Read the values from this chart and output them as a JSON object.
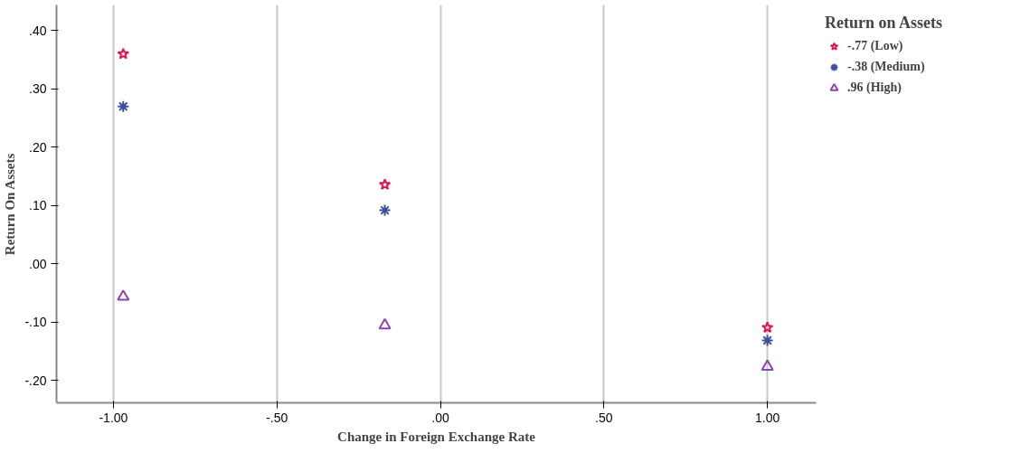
{
  "chart_data": {
    "type": "scatter",
    "xlabel": "Change in Foreign Exchange Rate",
    "ylabel": "Return On Assets",
    "legend_title": "Return on Assets",
    "x": [
      -0.97,
      -0.17,
      1.0
    ],
    "series": [
      {
        "name": "-.77 (Low)",
        "color": "#e0174f",
        "marker": "star",
        "values": [
          0.36,
          0.136,
          -0.109
        ]
      },
      {
        "name": "-.38 (Medium)",
        "color": "#3c4f9a",
        "marker": "cross",
        "values": [
          0.27,
          0.092,
          -0.131
        ]
      },
      {
        "name": ".96 (High)",
        "color": "#8e44ad",
        "marker": "triangle",
        "values": [
          -0.056,
          -0.105,
          -0.176
        ]
      }
    ],
    "xlim": [
      -1.174,
      1.149
    ],
    "ylim": [
      -0.238,
      0.444
    ],
    "xticks": [
      {
        "value": -1,
        "label": "-1.00"
      },
      {
        "value": -0.5,
        "label": "-.50"
      },
      {
        "value": 0,
        "label": ".00"
      },
      {
        "value": 0.5,
        "label": ".50"
      },
      {
        "value": 1,
        "label": "1.00"
      }
    ],
    "yticks": [
      {
        "value": -0.2,
        "label": "-.20"
      },
      {
        "value": -0.1,
        "label": "-.10"
      },
      {
        "value": 0,
        "label": ".00"
      },
      {
        "value": 0.1,
        "label": ".10"
      },
      {
        "value": 0.2,
        "label": ".20"
      },
      {
        "value": 0.3,
        "label": ".30"
      },
      {
        "value": 0.4,
        "label": ".40"
      }
    ],
    "grid": "x",
    "legend": "right"
  }
}
